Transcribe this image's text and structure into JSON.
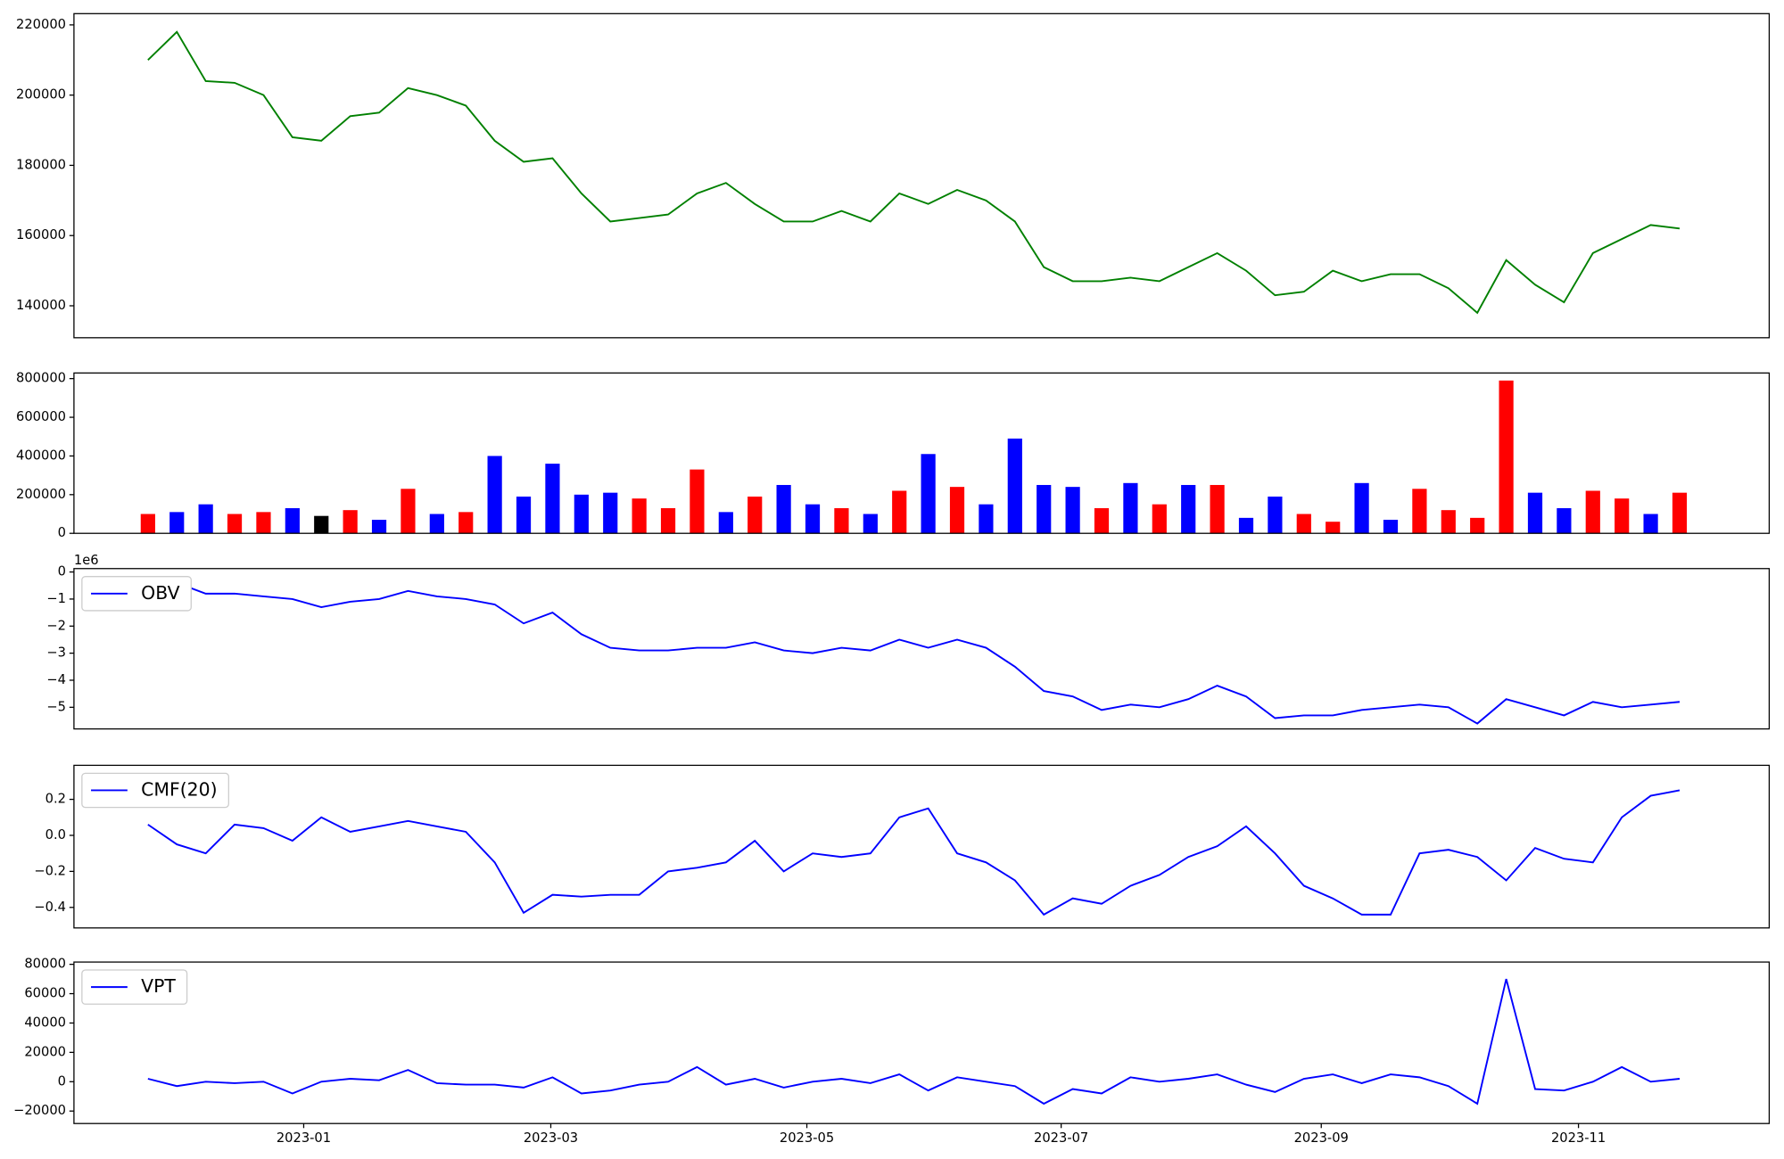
{
  "chart_data": [
    {
      "type": "line",
      "color": "#008000",
      "values": [
        210000,
        218000,
        204000,
        203500,
        200000,
        188000,
        187000,
        194000,
        195000,
        202000,
        200000,
        197000,
        187000,
        181000,
        182000,
        172000,
        164000,
        165000,
        166000,
        172000,
        175000,
        169000,
        164000,
        164000,
        167000,
        164000,
        172000,
        169000,
        173000,
        170000,
        164000,
        151000,
        147000,
        147000,
        148000,
        147000,
        151000,
        155000,
        150000,
        143000,
        144000,
        150000,
        147000,
        149000,
        149000,
        145000,
        138000,
        153000,
        146000,
        141000,
        155000,
        159000,
        163000,
        162000
      ],
      "xlim": [
        -2.56,
        56.1
      ],
      "ylim": [
        130900,
        223200
      ],
      "yticks": [
        140000,
        160000,
        180000,
        200000,
        220000
      ]
    },
    {
      "type": "bar",
      "values": [
        100000,
        110000,
        150000,
        100000,
        110000,
        130000,
        90000,
        120000,
        70000,
        230000,
        100000,
        110000,
        400000,
        190000,
        360000,
        200000,
        210000,
        180000,
        130000,
        330000,
        110000,
        190000,
        250000,
        150000,
        130000,
        100000,
        220000,
        410000,
        240000,
        150000,
        490000,
        250000,
        240000,
        130000,
        260000,
        150000,
        250000,
        250000,
        80000,
        190000,
        100000,
        60000,
        260000,
        70000,
        230000,
        120000,
        80000,
        790000,
        210000,
        130000,
        220000,
        180000,
        100000,
        210000
      ],
      "colors": [
        "#ff0000",
        "#0000ff",
        "#0000ff",
        "#ff0000",
        "#ff0000",
        "#0000ff",
        "#000000",
        "#ff0000",
        "#0000ff",
        "#ff0000",
        "#0000ff",
        "#ff0000",
        "#0000ff",
        "#0000ff",
        "#0000ff",
        "#0000ff",
        "#0000ff",
        "#ff0000",
        "#ff0000",
        "#ff0000",
        "#0000ff",
        "#ff0000",
        "#0000ff",
        "#0000ff",
        "#ff0000",
        "#0000ff",
        "#ff0000",
        "#0000ff",
        "#ff0000",
        "#0000ff",
        "#0000ff",
        "#0000ff",
        "#0000ff",
        "#ff0000",
        "#0000ff",
        "#ff0000",
        "#0000ff",
        "#ff0000",
        "#0000ff",
        "#0000ff",
        "#ff0000",
        "#ff0000",
        "#0000ff",
        "#0000ff",
        "#ff0000",
        "#ff0000",
        "#ff0000",
        "#ff0000",
        "#0000ff",
        "#0000ff",
        "#ff0000",
        "#ff0000",
        "#0000ff",
        "#ff0000"
      ],
      "xlim": [
        -2.56,
        56.1
      ],
      "ylim": [
        0,
        829000
      ],
      "yticks": [
        0,
        200000,
        400000,
        600000,
        800000
      ]
    },
    {
      "type": "line",
      "legend": "upper left",
      "y_offset_label": "1e6",
      "series": [
        {
          "name": "OBV",
          "color": "#0000ff",
          "values": [
            -300000,
            -400000,
            -800000,
            -800000,
            -900000,
            -1000000,
            -1300000,
            -1100000,
            -1000000,
            -700000,
            -900000,
            -1000000,
            -1200000,
            -1900000,
            -1500000,
            -2300000,
            -2800000,
            -2900000,
            -2900000,
            -2800000,
            -2800000,
            -2600000,
            -2900000,
            -3000000,
            -2800000,
            -2900000,
            -2500000,
            -2800000,
            -2500000,
            -2800000,
            -3500000,
            -4400000,
            -4600000,
            -5100000,
            -4900000,
            -5000000,
            -4700000,
            -4200000,
            -4600000,
            -5400000,
            -5300000,
            -5300000,
            -5100000,
            -5000000,
            -4900000,
            -5000000,
            -5600000,
            -4700000,
            -5000000,
            -5300000,
            -4800000,
            -5000000,
            -4900000,
            -4800000
          ]
        }
      ],
      "xlim": [
        -2.56,
        56.1
      ],
      "ylim": [
        -5800000,
        126000
      ],
      "yticks": [
        {
          "value": -5000000,
          "label": "−5"
        },
        {
          "value": -4000000,
          "label": "−4"
        },
        {
          "value": -3000000,
          "label": "−3"
        },
        {
          "value": -2000000,
          "label": "−2"
        },
        {
          "value": -1000000,
          "label": "−1"
        },
        0
      ]
    },
    {
      "type": "line",
      "legend": "upper left",
      "series": [
        {
          "name": "CMF(20)",
          "color": "#0000ff",
          "values": [
            0.06,
            -0.05,
            -0.1,
            0.06,
            0.04,
            -0.03,
            0.1,
            0.02,
            0.05,
            0.08,
            0.05,
            0.02,
            -0.15,
            -0.43,
            -0.33,
            -0.34,
            -0.33,
            -0.33,
            -0.2,
            -0.18,
            -0.15,
            -0.03,
            -0.2,
            -0.1,
            -0.12,
            -0.1,
            0.1,
            0.15,
            -0.1,
            -0.15,
            -0.25,
            -0.44,
            -0.35,
            -0.38,
            -0.28,
            -0.22,
            -0.12,
            -0.06,
            0.05,
            -0.1,
            -0.28,
            -0.35,
            -0.44,
            -0.44,
            -0.1,
            -0.08,
            -0.12,
            -0.25,
            -0.07,
            -0.13,
            -0.15,
            0.1,
            0.22,
            0.25
          ]
        }
      ],
      "xlim": [
        -2.56,
        56.1
      ],
      "ylim": [
        -0.514,
        0.389
      ],
      "yticks": [
        {
          "value": -0.4,
          "label": "−0.4"
        },
        {
          "value": -0.2,
          "label": "−0.2"
        },
        {
          "value": 0,
          "label": "0.0"
        },
        0.2
      ]
    },
    {
      "type": "line",
      "legend": "upper left",
      "series": [
        {
          "name": "VPT",
          "color": "#0000ff",
          "values": [
            2000,
            -3000,
            0,
            -1000,
            0,
            -8000,
            0,
            2000,
            1000,
            8000,
            -1000,
            -2000,
            -2000,
            -4000,
            3000,
            -8000,
            -6000,
            -2000,
            0,
            10000,
            -2000,
            2000,
            -4000,
            0,
            2000,
            -1000,
            5000,
            -6000,
            3000,
            0,
            -3000,
            -15000,
            -5000,
            -8000,
            3000,
            0,
            2000,
            5000,
            -2000,
            -7000,
            2000,
            5000,
            -1000,
            5000,
            3000,
            -3000,
            -15000,
            70000,
            -5000,
            -6000,
            0,
            10000,
            0,
            2000
          ]
        }
      ],
      "xlim": [
        -2.56,
        56.1
      ],
      "ylim": [
        -28500,
        81550
      ],
      "yticks": [
        {
          "value": -20000,
          "label": "−20000"
        },
        0,
        20000,
        40000,
        60000,
        80000
      ],
      "xticks": [
        {
          "value": 5.39,
          "label": "2023-01"
        },
        {
          "value": 13.94,
          "label": "2023-03"
        },
        {
          "value": 22.8,
          "label": "2023-05"
        },
        {
          "value": 31.6,
          "label": "2023-07"
        },
        {
          "value": 40.6,
          "label": "2023-09"
        },
        {
          "value": 49.5,
          "label": "2023-11"
        }
      ]
    }
  ]
}
